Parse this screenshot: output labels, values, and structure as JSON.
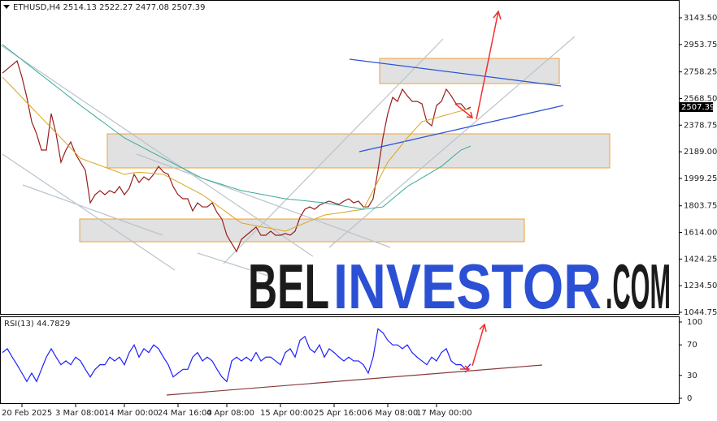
{
  "chart_data": [
    {
      "type": "line",
      "title": "ETHUSD,H4 2514.13 2522.27 2477.08 2507.39",
      "categories": [
        null,
        null,
        null,
        null,
        "20 Feb 2025",
        null,
        null,
        null,
        null,
        null,
        null,
        null,
        null,
        null,
        null,
        "3 Mar 08:00",
        null,
        null,
        null,
        null,
        null,
        null,
        null,
        null,
        null,
        "14 Mar 00:00",
        null,
        null,
        null,
        null,
        null,
        null,
        null,
        null,
        null,
        null,
        "24 Mar 16:00",
        null,
        null,
        null,
        null,
        null,
        null,
        null,
        null,
        null,
        "4 Apr 08:00",
        null,
        null,
        null,
        null,
        null,
        null,
        null,
        null,
        null,
        null,
        "15 Apr 00:00",
        null,
        null,
        null,
        null,
        null,
        null,
        null,
        null,
        null,
        null,
        "25 Apr 16:00",
        null,
        null,
        null,
        null,
        null,
        null,
        null,
        null,
        null,
        null,
        "6 May 08:00",
        null,
        null,
        null,
        null,
        null,
        null,
        null,
        null,
        null,
        "17 May 00:00",
        null,
        null,
        null,
        null,
        null,
        null,
        null
      ],
      "series": [
        {
          "color": "#9a1c1c",
          "values": [
            2750,
            2779,
            2808,
            2837,
            2721,
            2577,
            2403,
            2317,
            2201,
            2201,
            2461,
            2317,
            2114,
            2201,
            2259,
            2172,
            2114,
            2057,
            1825,
            1883,
            1912,
            1883,
            1912,
            1895,
            1941,
            1883,
            1929,
            2028,
            1970,
            2010,
            1987,
            2028,
            2085,
            2045,
            2028,
            1941,
            1883,
            1854,
            1854,
            1767,
            1825,
            1796,
            1796,
            1825,
            1756,
            1709,
            1594,
            1536,
            1478,
            1565,
            1594,
            1623,
            1652,
            1594,
            1594,
            1623,
            1594,
            1594,
            1606,
            1594,
            1623,
            1721,
            1779,
            1796,
            1779,
            1808,
            1825,
            1837,
            1825,
            1814,
            1837,
            1854,
            1825,
            1837,
            1796,
            1796,
            1854,
            2057,
            2288,
            2461,
            2577,
            2548,
            2635,
            2588,
            2548,
            2548,
            2531,
            2403,
            2374,
            2519,
            2548,
            2635,
            2588,
            2531,
            2531,
            2490,
            2507
          ]
        },
        {
          "color": "#d9a520",
          "values": [
            2721,
            2685,
            2649,
            2613,
            2577,
            2540,
            2504,
            2468,
            2432,
            2396,
            2360,
            2324,
            2288,
            2252,
            2215,
            2179,
            2143,
            2130,
            2117,
            2105,
            2092,
            2079,
            2066,
            2053,
            2041,
            2028,
            2035,
            2040,
            2042,
            2040,
            2038,
            2035,
            2030,
            2028,
            2010,
            1992,
            1974,
            1956,
            1937,
            1919,
            1901,
            1883,
            1858,
            1832,
            1807,
            1782,
            1757,
            1731,
            1706,
            1681,
            1675,
            1668,
            1662,
            1655,
            1649,
            1643,
            1636,
            1630,
            1623,
            1637,
            1652,
            1666,
            1681,
            1695,
            1709,
            1724,
            1738,
            1743,
            1748,
            1753,
            1758,
            1764,
            1769,
            1774,
            1779,
            1846,
            1913,
            1980,
            2047,
            2114,
            2158,
            2201,
            2245,
            2288,
            2326,
            2365,
            2403,
            2413,
            2422,
            2432,
            2442,
            2451,
            2461,
            2471,
            2480,
            2490,
            2495
          ]
        },
        {
          "color": "#3aa89a",
          "values": [
            2953,
            2926,
            2899,
            2872,
            2845,
            2817,
            2790,
            2763,
            2736,
            2709,
            2682,
            2655,
            2628,
            2600,
            2573,
            2546,
            2519,
            2493,
            2468,
            2442,
            2416,
            2391,
            2365,
            2339,
            2314,
            2288,
            2270,
            2252,
            2234,
            2216,
            2197,
            2179,
            2161,
            2143,
            2125,
            2107,
            2089,
            2071,
            2053,
            2035,
            2017,
            1999,
            1988,
            1977,
            1966,
            1956,
            1945,
            1934,
            1923,
            1912,
            1906,
            1899,
            1893,
            1886,
            1880,
            1873,
            1867,
            1860,
            1854,
            1850,
            1847,
            1843,
            1840,
            1836,
            1832,
            1829,
            1825,
            1819,
            1814,
            1808,
            1802,
            1796,
            1791,
            1785,
            1779,
            1783,
            1788,
            1792,
            1796,
            1825,
            1854,
            1883,
            1912,
            1941,
            1962,
            1982,
            2003,
            2023,
            2044,
            2064,
            2085,
            2114,
            2143,
            2172,
            2201,
            2215,
            2230
          ]
        }
      ],
      "ylim": [
        1027.4,
        3270.7
      ],
      "yticks": [
        {
          "value": 3143.5,
          "label": "3143.50"
        },
        {
          "value": 2953.75,
          "label": "2953.75"
        },
        {
          "value": 2758.25,
          "label": "2758.25"
        },
        {
          "value": 2568.5,
          "label": "2568.50"
        },
        {
          "value": 2378.75,
          "label": "2378.75"
        },
        {
          "value": 2189,
          "label": "2189.00"
        },
        {
          "value": 1999.25,
          "label": "1999.25"
        },
        {
          "value": 1803.75,
          "label": "1803.75"
        },
        {
          "value": 1614,
          "label": "1614.00"
        },
        {
          "value": 1424.25,
          "label": "1424.25"
        },
        {
          "value": 1234.5,
          "label": "1234.50"
        },
        {
          "value": 1044.75,
          "label": "1044.75"
        }
      ],
      "last_price": {
        "value": 2507.39,
        "label": "2507.39"
      },
      "annotations": [
        "BEL",
        "INVESTOR",
        ".COM"
      ]
    },
    {
      "type": "line",
      "title": "RSI(13) 44.7829",
      "series": [
        {
          "color": "#1f1fff",
          "values": [
            60,
            65,
            54,
            44,
            33,
            22,
            33,
            22,
            38,
            54,
            65,
            54,
            44,
            49,
            44,
            54,
            49,
            38,
            28,
            38,
            44,
            44,
            54,
            49,
            54,
            44,
            60,
            70,
            54,
            65,
            60,
            70,
            65,
            54,
            44,
            28,
            33,
            38,
            38,
            54,
            60,
            49,
            54,
            49,
            38,
            28,
            22,
            49,
            54,
            49,
            54,
            49,
            60,
            49,
            54,
            54,
            49,
            44,
            60,
            65,
            54,
            76,
            81,
            65,
            60,
            70,
            54,
            65,
            60,
            54,
            49,
            54,
            49,
            49,
            44,
            33,
            54,
            91,
            86,
            76,
            70,
            70,
            65,
            70,
            60,
            54,
            49,
            44,
            54,
            49,
            60,
            65,
            49,
            44,
            44,
            38,
            45
          ]
        }
      ],
      "ylim": [
        -7.4,
        107.4
      ],
      "yticks": [
        100,
        70,
        30,
        0
      ]
    }
  ]
}
